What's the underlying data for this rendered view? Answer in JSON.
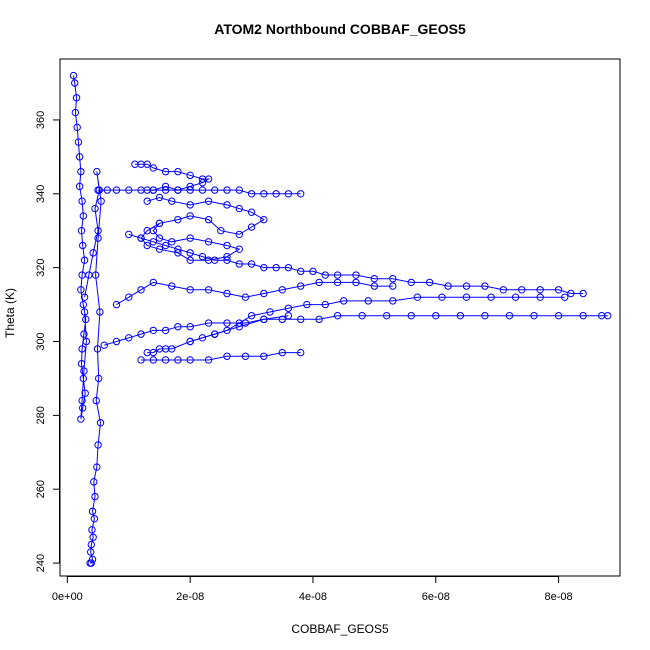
{
  "chart_data": {
    "type": "scatter",
    "title": "ATOM2 Northbound COBBAF_GEOS5",
    "xlabel": "COBBAF_GEOS5",
    "ylabel": "Theta (K)",
    "xlim": [
      -1.2e-09,
      9e-08
    ],
    "ylim": [
      236.5,
      376.5
    ],
    "x_ticks": [
      {
        "value": 0,
        "label": "0e+00"
      },
      {
        "value": 2e-08,
        "label": "2e-08"
      },
      {
        "value": 4e-08,
        "label": "4e-08"
      },
      {
        "value": 6e-08,
        "label": "6e-08"
      },
      {
        "value": 8e-08,
        "label": "8e-08"
      }
    ],
    "y_ticks": [
      {
        "value": 240,
        "label": "240"
      },
      {
        "value": 260,
        "label": "260"
      },
      {
        "value": 280,
        "label": "280"
      },
      {
        "value": 300,
        "label": "300"
      },
      {
        "value": 320,
        "label": "320"
      },
      {
        "value": 340,
        "label": "340"
      },
      {
        "value": 360,
        "label": "360"
      }
    ],
    "marker": "open-circle",
    "connected": true,
    "color": "#0000ff",
    "series": [
      {
        "x": [
          1e-09,
          1.2e-09,
          1.5e-09,
          1.3e-09,
          1.6e-09,
          1.8e-09,
          2e-09,
          2.2e-09,
          2e-09,
          2.4e-09,
          2.6e-09,
          2.3e-09,
          2.5e-09,
          2.8e-09,
          2.4e-09,
          2.2e-09,
          2.6e-09,
          3e-09,
          2.7e-09,
          2.4e-09,
          2.3e-09,
          2.6e-09,
          2.9e-09,
          2.5e-09,
          2.2e-09,
          2.4e-09,
          2.7e-09,
          3.1e-09,
          2.8e-09
        ],
        "y": [
          372,
          370,
          366,
          362,
          358,
          354,
          350,
          346,
          342,
          338,
          334,
          330,
          326,
          322,
          318,
          314,
          310,
          306,
          302,
          298,
          294,
          290,
          286,
          282,
          279,
          284,
          292,
          300,
          308
        ]
      },
      {
        "x": [
          2.8e-09,
          3.5e-09,
          4.2e-09,
          5e-09,
          4.5e-09,
          5.2e-09,
          4.8e-09,
          5.5e-09,
          5e-09,
          4.6e-09,
          5.3e-09,
          4.9e-09,
          5.1e-09,
          4.7e-09,
          5.4e-09,
          5e-09,
          4.8e-09,
          4.3e-09,
          4.5e-09,
          4.1e-09,
          4.4e-09,
          4e-09,
          4.2e-09,
          3.9e-09,
          3.8e-09,
          4.1e-09,
          3.9e-09,
          3.7e-09
        ],
        "y": [
          312,
          318,
          324,
          330,
          336,
          341,
          346,
          338,
          328,
          318,
          308,
          298,
          290,
          284,
          278,
          272,
          266,
          262,
          258,
          254,
          252,
          249,
          247,
          245,
          243,
          241,
          240,
          240
        ]
      },
      {
        "x": [
          5e-09,
          6.5e-09,
          8e-09,
          1e-08,
          1.2e-08,
          1.4e-08,
          1.6e-08,
          1.8e-08,
          2e-08,
          2.2e-08,
          2.4e-08,
          2.6e-08,
          2.8e-08,
          3e-08,
          3.2e-08,
          3.4e-08,
          3.6e-08,
          3.8e-08
        ],
        "y": [
          341,
          341,
          341,
          341,
          341,
          341,
          342,
          341,
          341,
          341,
          341,
          341,
          341,
          340,
          340,
          340,
          340,
          340
        ]
      },
      {
        "x": [
          1.1e-08,
          1.2e-08,
          1.3e-08,
          1.4e-08,
          1.6e-08,
          1.8e-08,
          2e-08,
          2.2e-08,
          2.3e-08,
          2.2e-08,
          2e-08,
          1.8e-08,
          1.6e-08,
          1.4e-08,
          1.3e-08
        ],
        "y": [
          348,
          348,
          348,
          347,
          346,
          346,
          345,
          344,
          344,
          343,
          342,
          341,
          341,
          341,
          341
        ]
      },
      {
        "x": [
          1.3e-08,
          1.5e-08,
          1.7e-08,
          2e-08,
          2.3e-08,
          2.6e-08,
          2.8e-08,
          3e-08,
          3.2e-08,
          3e-08,
          2.8e-08,
          2.5e-08,
          2.3e-08,
          2e-08,
          1.8e-08,
          1.5e-08,
          1.4e-08,
          1.5e-08,
          1.7e-08,
          2e-08,
          2.3e-08,
          2.6e-08,
          2.8e-08,
          2.6e-08,
          2.3e-08,
          2e-08,
          1.8e-08,
          1.5e-08,
          1.3e-08,
          1.2e-08,
          1.3e-08,
          1.5e-08
        ],
        "y": [
          338,
          339,
          338,
          337,
          338,
          337,
          336,
          335,
          333,
          331,
          329,
          330,
          333,
          334,
          333,
          332,
          330,
          328,
          327,
          328,
          327,
          326,
          325,
          323,
          322,
          322,
          324,
          325,
          326,
          328,
          330,
          332
        ]
      },
      {
        "x": [
          1e-08,
          1.2e-08,
          1.4e-08,
          1.6e-08,
          1.8e-08,
          2e-08,
          2.2e-08,
          2.4e-08,
          2.6e-08,
          2.8e-08,
          3e-08,
          3.2e-08,
          3.4e-08,
          3.6e-08,
          3.8e-08,
          4e-08,
          4.2e-08,
          4.4e-08,
          4.7e-08,
          5e-08,
          5.3e-08,
          5.6e-08,
          5.9e-08,
          6.2e-08,
          6.5e-08,
          6.8e-08,
          7.1e-08,
          7.4e-08,
          7.7e-08,
          8e-08,
          8.2e-08,
          8.4e-08
        ],
        "y": [
          329,
          328,
          327,
          326,
          325,
          324,
          323,
          322,
          322,
          321,
          321,
          320,
          320,
          320,
          319,
          319,
          318,
          318,
          318,
          317,
          317,
          316,
          316,
          315,
          315,
          315,
          314,
          314,
          314,
          314,
          313,
          313
        ]
      },
      {
        "x": [
          6e-09,
          8e-09,
          1e-08,
          1.2e-08,
          1.4e-08,
          1.6e-08,
          1.8e-08,
          2e-08,
          2.3e-08,
          2.6e-08,
          2.9e-08,
          3.2e-08,
          3.5e-08,
          3.8e-08,
          4.1e-08,
          4.4e-08,
          4.8e-08,
          5.2e-08,
          5.6e-08,
          6e-08,
          6.4e-08,
          6.8e-08,
          7.2e-08,
          7.6e-08,
          8e-08,
          8.4e-08,
          8.7e-08,
          8.8e-08
        ],
        "y": [
          299,
          300,
          301,
          302,
          303,
          303,
          304,
          304,
          305,
          305,
          305,
          306,
          306,
          306,
          306,
          307,
          307,
          307,
          307,
          307,
          307,
          307,
          307,
          307,
          307,
          307,
          307,
          307
        ]
      },
      {
        "x": [
          2e-08,
          2.2e-08,
          2.4e-08,
          2.6e-08,
          2.8e-08,
          3e-08,
          3.3e-08,
          3.6e-08,
          3.9e-08,
          4.2e-08,
          4.5e-08,
          4.9e-08,
          5.3e-08,
          5.7e-08,
          6.1e-08,
          6.5e-08,
          6.9e-08,
          7.3e-08,
          7.7e-08,
          8.1e-08
        ],
        "y": [
          300,
          301,
          302,
          303,
          305,
          307,
          308,
          309,
          310,
          310,
          311,
          311,
          311,
          312,
          312,
          312,
          312,
          312,
          312,
          312
        ]
      },
      {
        "x": [
          1.2e-08,
          1.4e-08,
          1.6e-08,
          1.8e-08,
          2e-08,
          2.3e-08,
          2.6e-08,
          2.9e-08,
          3.2e-08,
          3.5e-08,
          3.8e-08
        ],
        "y": [
          295,
          295,
          295,
          295,
          295,
          295,
          296,
          296,
          296,
          297,
          297
        ]
      },
      {
        "x": [
          1.3e-08,
          1.4e-08,
          1.5e-08,
          1.6e-08,
          1.7e-08,
          2e-08,
          2.4e-08,
          2.8e-08,
          3.2e-08,
          3.6e-08
        ],
        "y": [
          297,
          297,
          298,
          298,
          298,
          300,
          302,
          304,
          306,
          307
        ]
      },
      {
        "x": [
          8e-09,
          1e-08,
          1.2e-08,
          1.4e-08,
          1.7e-08,
          2e-08,
          2.3e-08,
          2.6e-08,
          2.9e-08,
          3.2e-08,
          3.5e-08,
          3.8e-08,
          4.1e-08,
          4.4e-08,
          4.7e-08,
          5e-08,
          5.3e-08
        ],
        "y": [
          310,
          312,
          314,
          316,
          315,
          314,
          314,
          313,
          312,
          313,
          314,
          315,
          316,
          316,
          316,
          315,
          315
        ]
      }
    ]
  }
}
